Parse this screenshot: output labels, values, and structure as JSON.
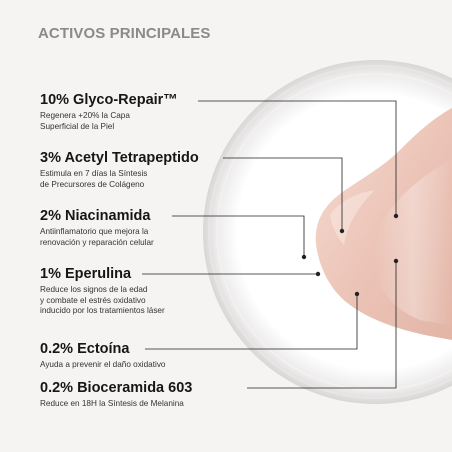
{
  "heading": "ACTIVOS PRINCIPALES",
  "ingredients": [
    {
      "name": "10% Glyco-Repair™",
      "desc": [
        "Regenera +20% la Capa",
        "Superficial de la Piel"
      ]
    },
    {
      "name": "3% Acetyl Tetrapeptido",
      "desc": [
        "Estimula en 7 días la Síntesis",
        "de Precursores de Colágeno"
      ]
    },
    {
      "name": "2% Niacinamida",
      "desc": [
        "Antiinflamatorio que mejora la",
        "renovación y reparación celular"
      ]
    },
    {
      "name": "1% Eperulina",
      "desc": [
        "Reduce los signos de la edad",
        "y combate el estrés oxidativo",
        "inducido por los tratamientos láser"
      ]
    },
    {
      "name": "0.2% Ectoína",
      "desc": [
        "Ayuda a prevenir el daño oxidativo"
      ]
    },
    {
      "name": "0.2% Bioceramida 603",
      "desc": [
        "Reduce en 18H la Síntesis de Melanina"
      ]
    }
  ],
  "colors": {
    "background": "#f5f4f3",
    "dish": "#ffffff",
    "cream": "#ecc9bd",
    "leader_line": "#222222"
  }
}
